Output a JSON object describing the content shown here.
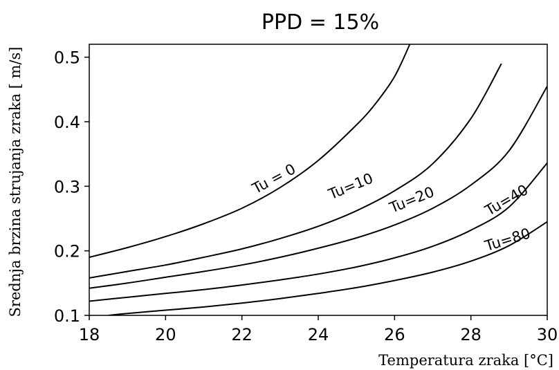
{
  "chart_data": {
    "type": "line",
    "title": "PPD = 15%",
    "xlabel": "Temperatura zraka [°C]",
    "ylabel": "Srednja brzina strujanja zraka [   m/s]",
    "xlim": [
      18,
      30
    ],
    "ylim": [
      0.1,
      0.52
    ],
    "grid": false,
    "x_ticks": [
      "18",
      "20",
      "22",
      "24",
      "26",
      "28",
      "30"
    ],
    "y_ticks": [
      "0.1",
      "0.2",
      "0.3",
      "0.4",
      "0.5"
    ],
    "series": [
      {
        "name": "Tu = 0",
        "x": [
          18,
          19,
          20,
          21,
          22,
          23,
          24,
          25,
          25.5,
          26,
          26.4
        ],
        "y": [
          0.19,
          0.205,
          0.222,
          0.242,
          0.266,
          0.298,
          0.34,
          0.395,
          0.428,
          0.47,
          0.52
        ]
      },
      {
        "name": "Tu=10",
        "x": [
          18,
          19,
          20,
          21,
          22,
          23,
          24,
          25,
          26,
          27,
          28,
          28.8
        ],
        "y": [
          0.158,
          0.168,
          0.178,
          0.19,
          0.203,
          0.219,
          0.238,
          0.262,
          0.293,
          0.335,
          0.405,
          0.49
        ]
      },
      {
        "name": "Tu=20",
        "x": [
          18,
          19,
          20,
          21,
          22,
          23,
          24,
          25,
          26,
          27,
          28,
          29,
          30
        ],
        "y": [
          0.142,
          0.15,
          0.159,
          0.168,
          0.178,
          0.19,
          0.204,
          0.22,
          0.24,
          0.266,
          0.302,
          0.355,
          0.455
        ]
      },
      {
        "name": "Tu=40",
        "x": [
          18,
          19,
          20,
          21,
          22,
          23,
          24,
          25,
          26,
          27,
          28,
          29,
          30
        ],
        "y": [
          0.122,
          0.128,
          0.134,
          0.14,
          0.147,
          0.155,
          0.164,
          0.175,
          0.189,
          0.207,
          0.232,
          0.268,
          0.336
        ]
      },
      {
        "name": "Tu=80",
        "x": [
          18.5,
          19,
          20,
          21,
          22,
          23,
          24,
          25,
          26,
          27,
          28,
          29,
          30
        ],
        "y": [
          0.1,
          0.103,
          0.108,
          0.113,
          0.119,
          0.126,
          0.134,
          0.143,
          0.154,
          0.167,
          0.184,
          0.208,
          0.245
        ]
      }
    ],
    "annotations": [
      {
        "text": "Tu = 0",
        "x": 22.9,
        "y": 0.305,
        "angle": -28
      },
      {
        "text": "Tu=10",
        "x": 24.9,
        "y": 0.293,
        "angle": -22
      },
      {
        "text": "Tu=20",
        "x": 26.5,
        "y": 0.272,
        "angle": -22
      },
      {
        "text": "Tu=40",
        "x": 29.0,
        "y": 0.272,
        "angle": -30
      },
      {
        "text": "Tu=80",
        "x": 29.0,
        "y": 0.21,
        "angle": -17
      }
    ]
  }
}
